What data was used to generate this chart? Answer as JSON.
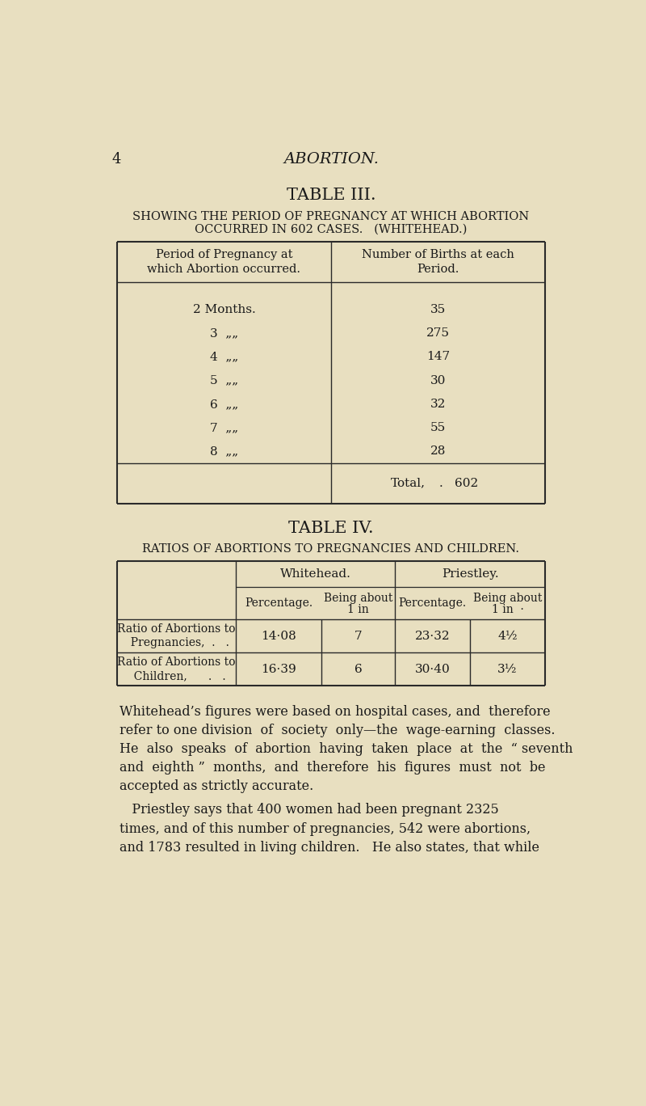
{
  "bg_color": "#e8dfc0",
  "text_color": "#1a1a1a",
  "page_number": "4",
  "header_title": "ABORTION.",
  "table3_title": "TABLE III.",
  "table3_subtitle_line1": "SHOWING THE PERIOD OF PREGNANCY AT WHICH ABORTION",
  "table3_subtitle_line2": "OCCURRED IN 602 CASES.   (WHITEHEAD.)",
  "table3_col1_header_line1": "Period of Pregnancy at",
  "table3_col1_header_line2": "which Abortion occurred.",
  "table3_col2_header_line1": "Number of Births at each",
  "table3_col2_header_line2": "Period.",
  "table3_rows": [
    [
      "2 Months.",
      "35"
    ],
    [
      "3  „„",
      "275"
    ],
    [
      "4  „„",
      "147"
    ],
    [
      "5  „„",
      "30"
    ],
    [
      "6  „„",
      "32"
    ],
    [
      "7  „„",
      "55"
    ],
    [
      "8  „„",
      "28"
    ]
  ],
  "table3_total_label": "Total,",
  "table3_total_dot": ".",
  "table3_total_val": "602",
  "table4_title": "TABLE IV.",
  "table4_subtitle": "RATIOS OF ABORTIONS TO PREGNANCIES AND CHILDREN.",
  "table4_col_whitehead": "Whitehead.",
  "table4_col_priestley": "Priestley.",
  "table4_sub_col1": "Percentage.",
  "table4_sub_col2_line1": "Being about",
  "table4_sub_col2_line2": "1 in",
  "table4_sub_col3": "Percentage.",
  "table4_sub_col4_line1": "Being about",
  "table4_sub_col4_line2": "1 in  ·",
  "table4_row1_label_line1": "Ratio of Abortions to",
  "table4_row1_label_line2": "  Pregnancies,  .   .",
  "table4_row2_label_line1": "Ratio of Abortions to",
  "table4_row2_label_line2": "  Children,      .   .",
  "table4_row1_vals": [
    "14·08",
    "7",
    "23·32",
    "4½"
  ],
  "table4_row2_vals": [
    "16·39",
    "6",
    "30·40",
    "3½"
  ],
  "body_para1_lines": [
    "Whitehead’s figures were based on hospital cases, and  therefore",
    "refer to one division  of  society  only—the  wage-earning  classes.",
    "He  also  speaks  of  abortion  having  taken  place  at  the  “ seventh",
    "and  eighth ”  months,  and  therefore  his  figures  must  not  be",
    "accepted as strictly accurate."
  ],
  "body_para2_lines": [
    "   Priestley says that 400 women had been pregnant 2325",
    "times, and of this number of pregnancies, 542 were abortions,",
    "and 1783 resulted in living children.   He also states, that while"
  ]
}
